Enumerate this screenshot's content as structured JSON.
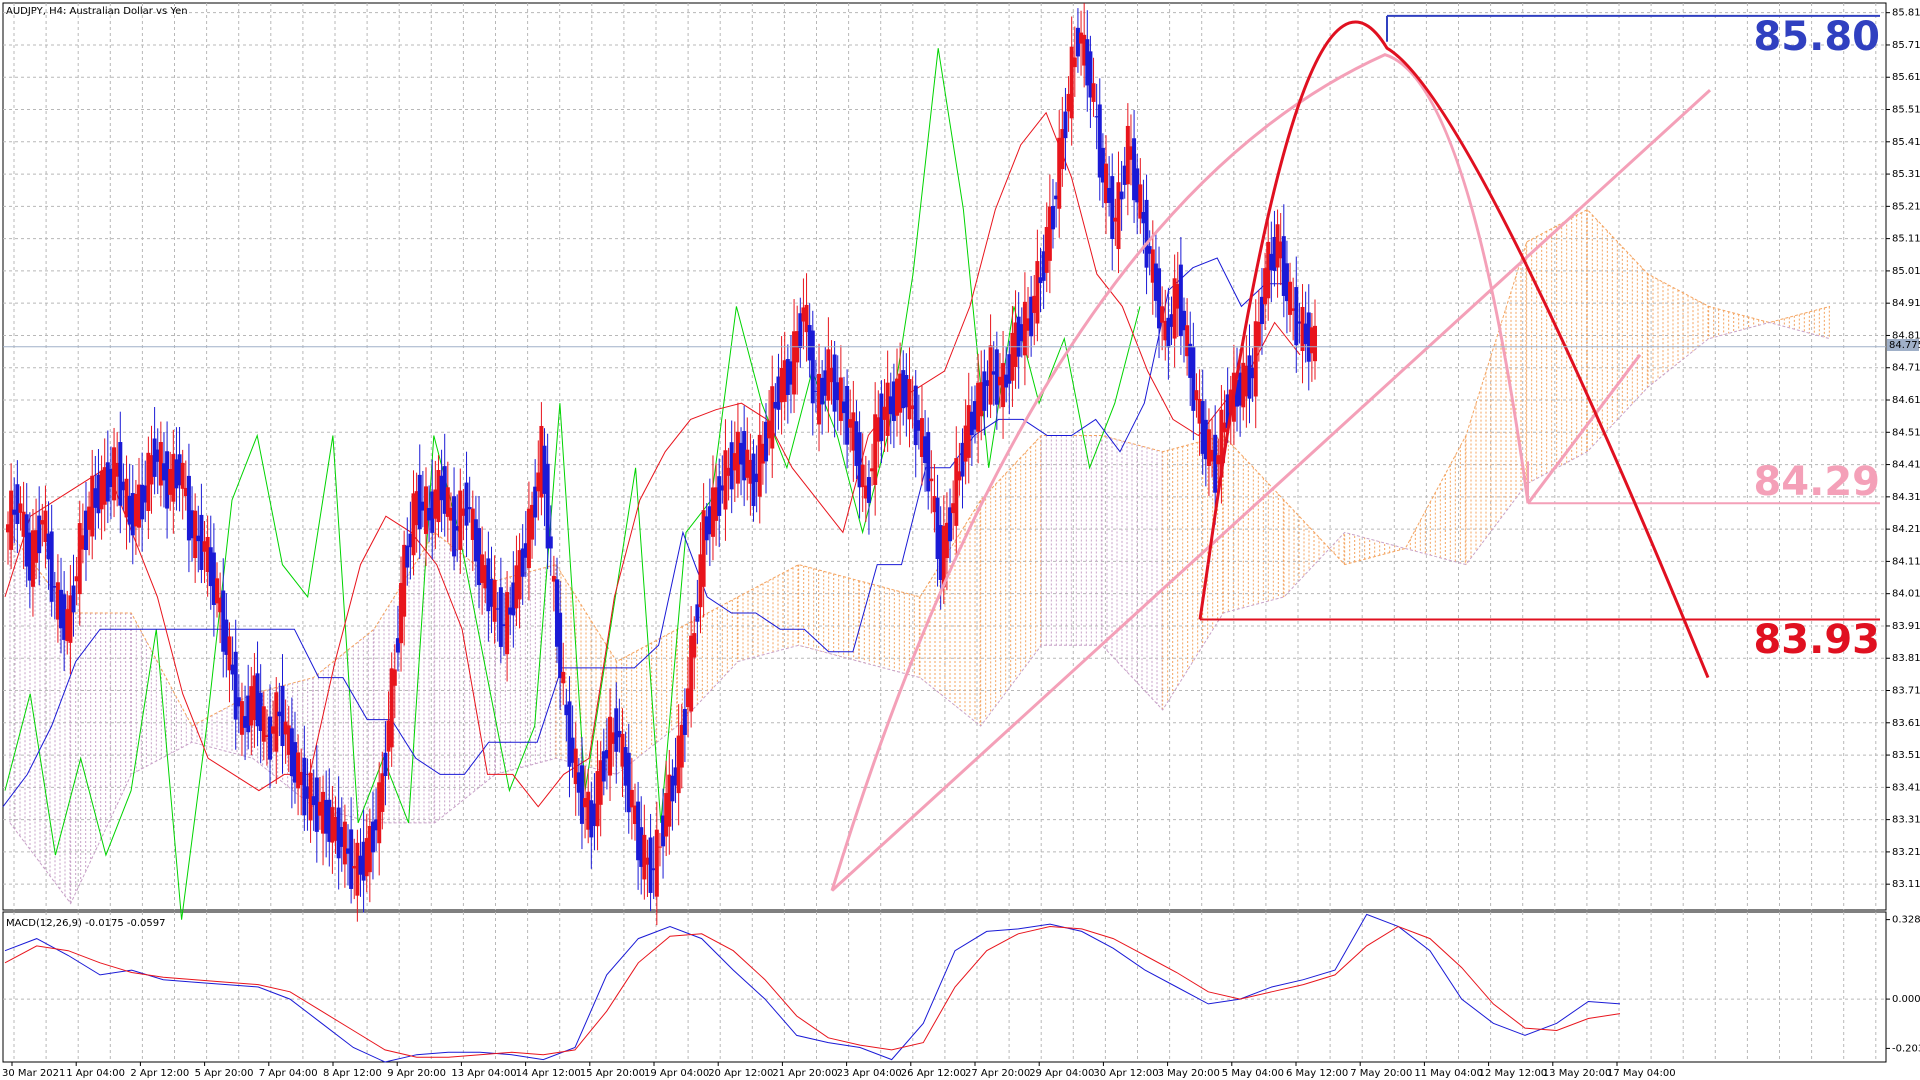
{
  "window": {
    "title": "AUDJPY, H4:  Australian Dollar vs Yen"
  },
  "macd_panel": {
    "title": "MACD(12,26,9) -0.0175 -0.0597"
  },
  "annotations": {
    "level_high": "85.80",
    "level_mid": "84.29",
    "level_low": "83.93",
    "current_price": "84.775"
  },
  "colors": {
    "bull_candle": "#e8141c",
    "bear_candle": "#1a1ad6",
    "kijun": "#1a1ad6",
    "tenkan": "#e8141c",
    "chikou": "#00d400",
    "kumo_up": "#f4a460",
    "kumo_down": "#c8a2c8",
    "trendline_pink": "#f4a0b8",
    "trendline_red": "#e01020",
    "level_blue": "#3040c0",
    "grid": "#b8b8b8"
  },
  "chart_data": [
    {
      "type": "candlestick",
      "title": "AUDJPY, H4:  Australian Dollar vs Yen",
      "y_ticks": [
        "85.810",
        "85.710",
        "85.610",
        "85.510",
        "85.410",
        "85.310",
        "85.210",
        "85.110",
        "85.010",
        "84.910",
        "84.810",
        "84.710",
        "84.610",
        "84.510",
        "84.410",
        "84.310",
        "84.210",
        "84.110",
        "84.010",
        "83.910",
        "83.810",
        "83.710",
        "83.610",
        "83.510",
        "83.410",
        "83.310",
        "83.210",
        "83.110"
      ],
      "ylim": [
        83.03,
        85.84
      ],
      "x_ticks": [
        "30 Mar 2021",
        "1 Apr 04:00",
        "2 Apr 12:00",
        "5 Apr 20:00",
        "7 Apr 04:00",
        "8 Apr 12:00",
        "9 Apr 20:00",
        "13 Apr 04:00",
        "14 Apr 12:00",
        "15 Apr 20:00",
        "19 Apr 04:00",
        "20 Apr 12:00",
        "21 Apr 20:00",
        "23 Apr 04:00",
        "26 Apr 12:00",
        "27 Apr 20:00",
        "29 Apr 04:00",
        "30 Apr 12:00",
        "3 May 20:00",
        "5 May 04:00",
        "6 May 12:00",
        "7 May 20:00",
        "11 May 04:00",
        "12 May 12:00",
        "13 May 20:00",
        "17 May 04:00"
      ],
      "close_path": [
        84.2,
        84.3,
        84.1,
        84.25,
        84.0,
        83.9,
        84.15,
        84.3,
        84.35,
        84.4,
        84.25,
        84.3,
        84.45,
        84.35,
        84.4,
        84.2,
        84.15,
        84.0,
        83.8,
        83.6,
        83.7,
        83.55,
        83.65,
        83.5,
        83.4,
        83.35,
        83.3,
        83.25,
        83.15,
        83.2,
        83.35,
        83.7,
        84.1,
        84.3,
        84.25,
        84.35,
        84.2,
        84.3,
        84.1,
        84.0,
        83.9,
        84.05,
        84.2,
        84.45,
        84.0,
        83.6,
        83.4,
        83.3,
        83.5,
        83.6,
        83.4,
        83.2,
        83.15,
        83.35,
        83.5,
        83.8,
        84.2,
        84.3,
        84.4,
        84.45,
        84.35,
        84.5,
        84.65,
        84.7,
        84.9,
        84.6,
        84.7,
        84.6,
        84.5,
        84.3,
        84.55,
        84.6,
        84.65,
        84.55,
        84.4,
        84.1,
        84.3,
        84.5,
        84.6,
        84.7,
        84.65,
        84.8,
        84.85,
        85.0,
        85.2,
        85.5,
        85.75,
        85.6,
        85.3,
        85.15,
        85.4,
        85.2,
        85.0,
        84.8,
        84.95,
        84.7,
        84.5,
        84.4,
        84.6,
        84.65,
        84.7,
        85.0,
        85.1,
        84.9,
        84.82,
        84.78
      ],
      "kijun_path": [
        83.35,
        83.45,
        83.6,
        83.8,
        83.9,
        83.9,
        83.9,
        83.9,
        83.9,
        83.9,
        83.9,
        83.9,
        83.9,
        83.75,
        83.75,
        83.62,
        83.62,
        83.5,
        83.45,
        83.45,
        83.55,
        83.55,
        83.55,
        83.78,
        83.78,
        83.78,
        83.78,
        83.85,
        84.2,
        84.0,
        83.95,
        83.95,
        83.9,
        83.9,
        83.83,
        83.83,
        84.1,
        84.1,
        84.4,
        84.4,
        84.5,
        84.55,
        84.55,
        84.5,
        84.5,
        84.55,
        84.45,
        84.6,
        84.95,
        85.02,
        85.05,
        84.9,
        84.97,
        84.97
      ],
      "tenkan_path": [
        84.0,
        84.25,
        84.3,
        84.35,
        84.4,
        84.2,
        84.0,
        83.7,
        83.5,
        83.45,
        83.4,
        83.45,
        83.45,
        83.8,
        84.1,
        84.25,
        84.2,
        84.1,
        83.9,
        83.45,
        83.45,
        83.35,
        83.45,
        83.5,
        84.0,
        84.3,
        84.45,
        84.55,
        84.58,
        84.6,
        84.55,
        84.4,
        84.3,
        84.2,
        84.5,
        84.6,
        84.65,
        84.7,
        84.9,
        85.2,
        85.4,
        85.5,
        85.3,
        85.0,
        84.9,
        84.7,
        84.55,
        84.5,
        84.6,
        84.7,
        84.85,
        84.75
      ],
      "chikou_path": [
        83.4,
        83.7,
        83.2,
        83.5,
        83.2,
        83.4,
        83.9,
        83.0,
        83.6,
        84.3,
        84.5,
        84.1,
        84.0,
        84.5,
        83.3,
        83.5,
        83.3,
        84.5,
        84.2,
        83.8,
        83.4,
        83.6,
        84.6,
        83.4,
        83.9,
        84.4,
        83.3,
        84.2,
        84.3,
        84.9,
        84.6,
        84.4,
        84.7,
        84.5,
        84.2,
        84.5,
        85.0,
        85.7,
        85.2,
        84.4,
        84.9,
        84.6,
        84.8,
        84.4,
        84.6,
        84.9
      ],
      "kumo_top_path": [
        84.2,
        83.95,
        83.95,
        83.6,
        83.7,
        83.75,
        83.9,
        84.2,
        84.05,
        84.1,
        83.8,
        83.9,
        84.0,
        84.1,
        84.05,
        84.0,
        84.3,
        84.5,
        84.5,
        84.45,
        84.5,
        84.3,
        84.1,
        84.15,
        84.5,
        85.1,
        85.2,
        85.0,
        84.9,
        84.85,
        84.9
      ],
      "kumo_bottom_path": [
        83.3,
        83.05,
        83.45,
        83.55,
        83.5,
        83.35,
        83.3,
        83.3,
        83.45,
        83.5,
        83.45,
        83.6,
        83.8,
        83.85,
        83.8,
        83.75,
        83.6,
        83.85,
        83.85,
        83.65,
        83.95,
        84.0,
        84.2,
        84.15,
        84.1,
        84.35,
        84.45,
        84.65,
        84.8,
        84.85,
        84.8
      ],
      "trend_lines": [
        {
          "name": "pink uptrend",
          "from": [
            83.09
          ],
          "to": [
            85.57
          ]
        },
        {
          "name": "red arc peak",
          "value": 85.7
        },
        {
          "name": "red downtrend end",
          "value": 83.75
        }
      ],
      "levels": [
        85.8,
        84.29,
        83.93
      ],
      "current_price": 84.775
    },
    {
      "type": "line",
      "title": "MACD(12,26,9) -0.0175 -0.0597",
      "y_ticks": [
        "0.3285",
        "0.0000",
        "-0.2038"
      ],
      "ylim": [
        -0.26,
        0.36
      ],
      "series": [
        {
          "values": [
            0.2,
            0.25,
            0.18,
            0.1,
            0.12,
            0.08,
            0.07,
            0.06,
            0.05,
            0.0,
            -0.1,
            -0.2,
            -0.26,
            -0.23,
            -0.22,
            -0.22,
            -0.23,
            -0.25,
            -0.2,
            0.1,
            0.25,
            0.3,
            0.25,
            0.12,
            0.0,
            -0.15,
            -0.18,
            -0.2,
            -0.25,
            -0.1,
            0.2,
            0.28,
            0.29,
            0.31,
            0.28,
            0.21,
            0.12,
            0.05,
            -0.02,
            0.0,
            0.05,
            0.08,
            0.12,
            0.35,
            0.3,
            0.2,
            0.0,
            -0.1,
            -0.15,
            -0.1,
            -0.01,
            -0.02
          ]
        },
        {
          "values": [
            0.15,
            0.22,
            0.2,
            0.15,
            0.11,
            0.09,
            0.08,
            0.07,
            0.06,
            0.03,
            -0.05,
            -0.13,
            -0.21,
            -0.24,
            -0.24,
            -0.23,
            -0.22,
            -0.23,
            -0.21,
            -0.05,
            0.15,
            0.26,
            0.27,
            0.2,
            0.08,
            -0.07,
            -0.16,
            -0.19,
            -0.21,
            -0.18,
            0.05,
            0.2,
            0.27,
            0.3,
            0.29,
            0.25,
            0.18,
            0.11,
            0.03,
            0.0,
            0.03,
            0.06,
            0.1,
            0.22,
            0.3,
            0.25,
            0.13,
            -0.02,
            -0.12,
            -0.13,
            -0.08,
            -0.06
          ]
        }
      ]
    }
  ]
}
